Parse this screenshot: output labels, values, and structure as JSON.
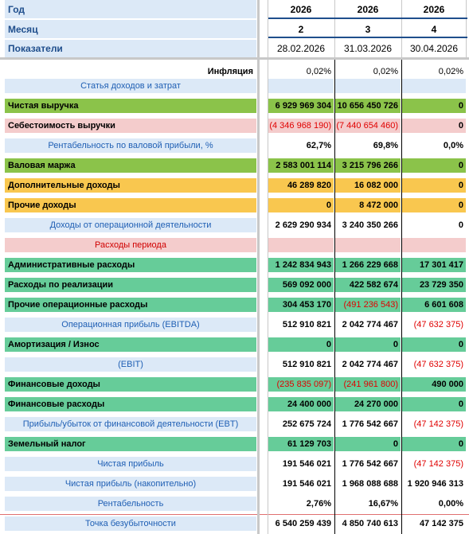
{
  "header": {
    "year": {
      "label": "Год",
      "values": [
        "2026",
        "2026",
        "2026"
      ]
    },
    "month": {
      "label": "Месяц",
      "values": [
        "2",
        "3",
        "4"
      ]
    },
    "indicators": {
      "label": "Показатели",
      "values": [
        "28.02.2026",
        "31.03.2026",
        "30.04.2026"
      ]
    }
  },
  "inflation": {
    "label": "Инфляция",
    "values": [
      "0,02%",
      "0,02%",
      "0,02%"
    ]
  },
  "rows": [
    {
      "label": "Статья доходов и затрат",
      "values": [
        "",
        "",
        ""
      ]
    },
    {
      "label": "Чистая выручка",
      "values": [
        "6 929 969 304",
        "10 656 450 726",
        "0"
      ]
    },
    {
      "label": "Себестоимость выручки",
      "values": [
        "(4 346 968 190)",
        "(7 440 654 460)",
        "0"
      ]
    },
    {
      "label": "Рентабельность по валовой прибыли, %",
      "values": [
        "62,7%",
        "69,8%",
        "0,0%"
      ]
    },
    {
      "label": "Валовая маржа",
      "values": [
        "2 583 001 114",
        "3 215 796 266",
        "0"
      ]
    },
    {
      "label": "Дополнительные доходы",
      "values": [
        "46 289 820",
        "16 082 000",
        "0"
      ]
    },
    {
      "label": "Прочие доходы",
      "values": [
        "0",
        "8 472 000",
        "0"
      ]
    },
    {
      "label": "Доходы от операционной деятельности",
      "values": [
        "2 629 290 934",
        "3 240 350 266",
        "0"
      ]
    },
    {
      "label": "Расходы периода",
      "values": [
        "",
        "",
        ""
      ]
    },
    {
      "label": "Административные расходы",
      "values": [
        "1 242 834 943",
        "1 266 229 668",
        "17 301 417"
      ]
    },
    {
      "label": "Расходы по реализации",
      "values": [
        "569 092 000",
        "422 582 674",
        "23 729 350"
      ]
    },
    {
      "label": "Прочие операционные расходы",
      "values": [
        "304 453 170",
        "(491 236 543)",
        "6 601 608"
      ]
    },
    {
      "label": "Операционная прибыль (EBITDA)",
      "values": [
        "512 910 821",
        "2 042 774 467",
        "(47 632 375)"
      ]
    },
    {
      "label": "Амортизация / Износ",
      "values": [
        "0",
        "0",
        "0"
      ]
    },
    {
      "label": "(EBIT)",
      "values": [
        "512 910 821",
        "2 042 774 467",
        "(47 632 375)"
      ]
    },
    {
      "label": "Финансовые доходы",
      "values": [
        "(235 835 097)",
        "(241 961 800)",
        "490 000"
      ]
    },
    {
      "label": "Финансовые расходы",
      "values": [
        "24 400 000",
        "24 270 000",
        "0"
      ]
    },
    {
      "label": "Прибыль/убыток от финансовой деятельности (EBT)",
      "values": [
        "252 675 724",
        "1 776 542 667",
        "(47 142 375)"
      ]
    },
    {
      "label": "Земельный налог",
      "values": [
        "61 129 703",
        "0",
        "0"
      ]
    },
    {
      "label": "Чистая прибыль",
      "values": [
        "191 546 021",
        "1 776 542 667",
        "(47 142 375)"
      ]
    },
    {
      "label": "Чистая прибыль (накопительно)",
      "values": [
        "191 546 021",
        "1 968 088 688",
        "1 920 946 313"
      ]
    },
    {
      "label": "Рентабельность",
      "values": [
        "2,76%",
        "16,67%",
        "0,00%"
      ]
    },
    {
      "label": "Точка безубыточности",
      "values": [
        "6 540 259 439",
        "4 850 740 613",
        "47 142 375"
      ]
    }
  ],
  "colors": {
    "green": "#8bc34a",
    "mint": "#66cc99",
    "orange": "#f9c74f",
    "pink": "#f4cccc",
    "light_blue": "#dce9f7",
    "negative": "#e00000"
  }
}
